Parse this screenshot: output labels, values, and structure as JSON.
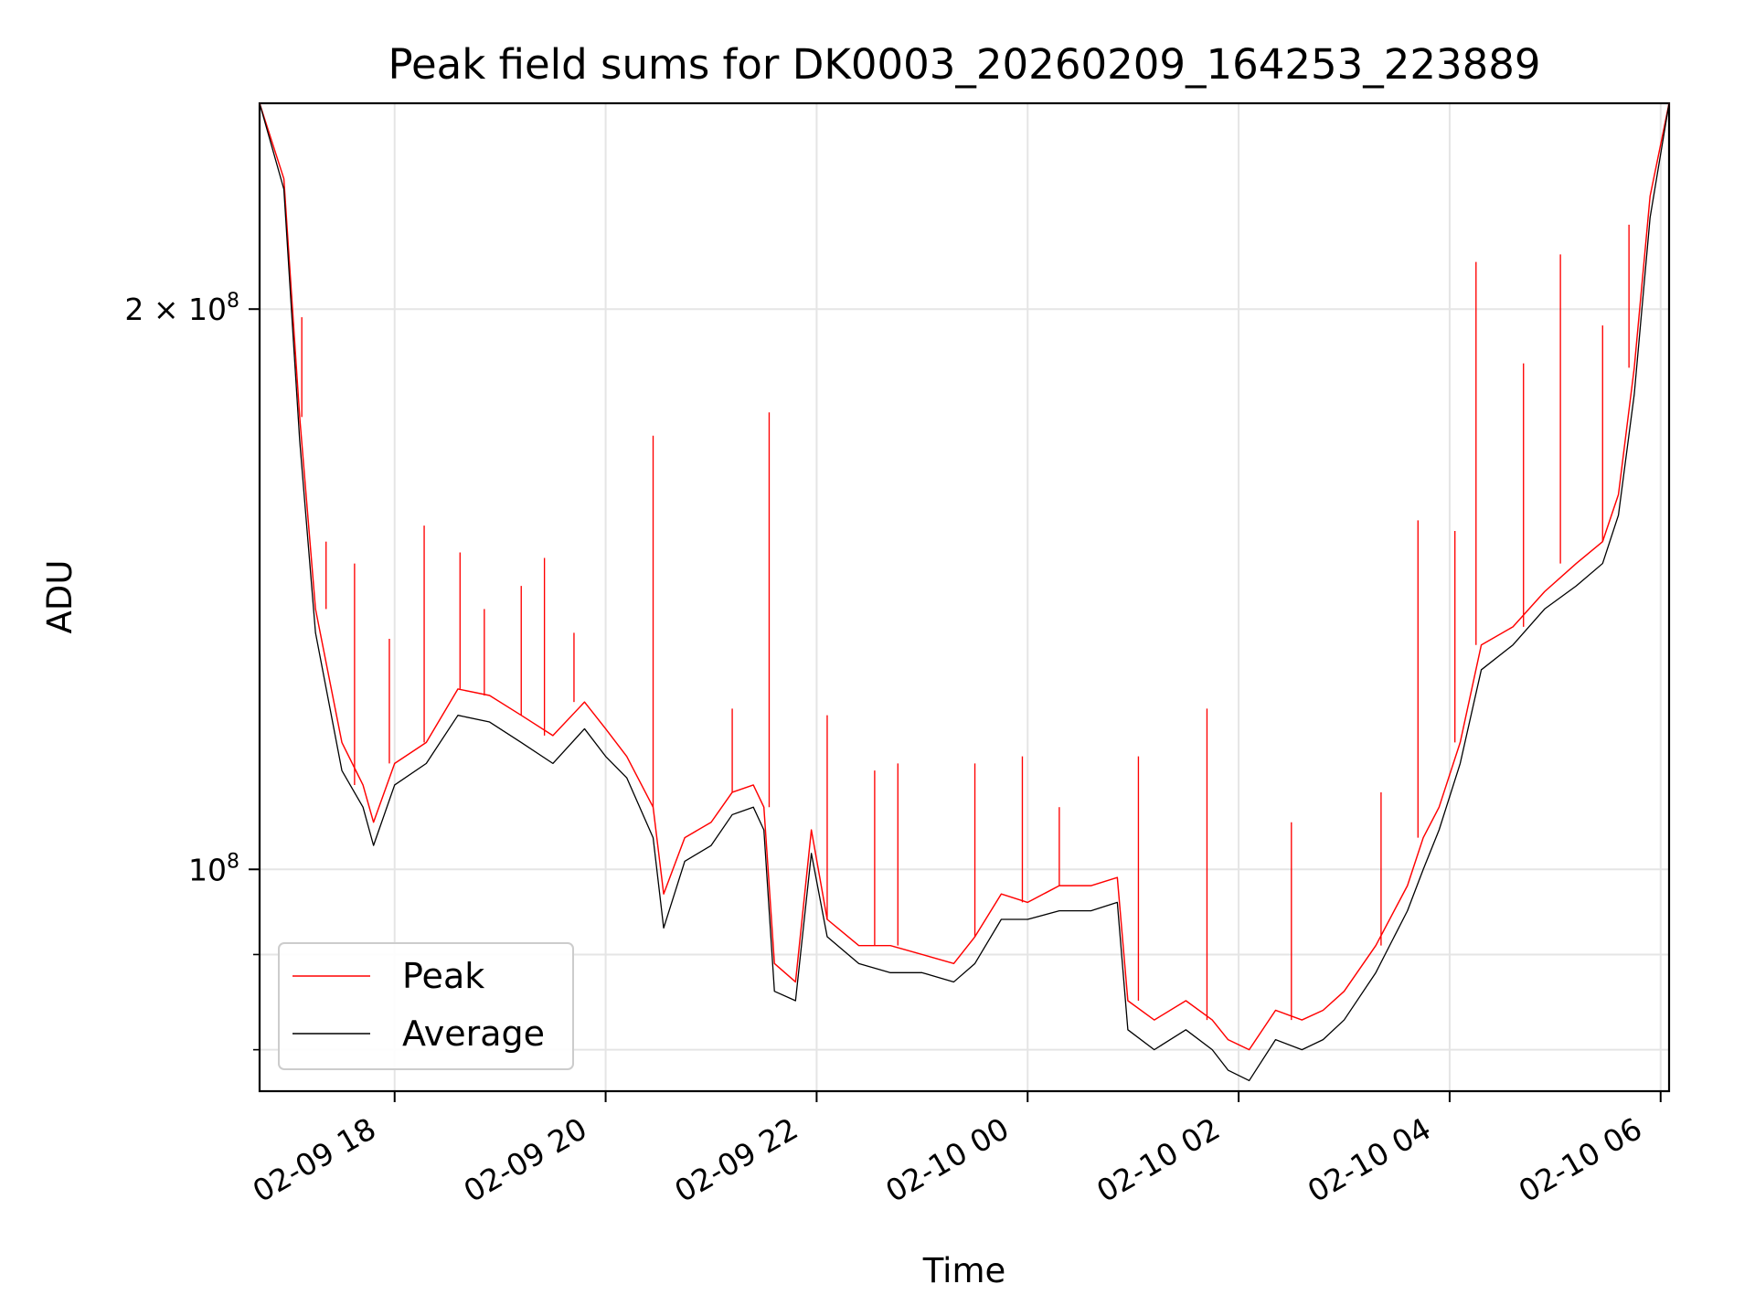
{
  "chart_data": {
    "type": "line",
    "title": "Peak field sums for DK0003_20260209_164253_223889",
    "xlabel": "Time",
    "ylabel": "ADU",
    "yscale": "log",
    "xlim_hours": [
      16.72,
      30.08
    ],
    "ylim": [
      76000000,
      258000000
    ],
    "grid": true,
    "legend_position": "lower-left",
    "x_ticks": [
      {
        "hours": 18,
        "label": "02-09 18"
      },
      {
        "hours": 20,
        "label": "02-09 20"
      },
      {
        "hours": 22,
        "label": "02-09 22"
      },
      {
        "hours": 24,
        "label": "02-10 00"
      },
      {
        "hours": 26,
        "label": "02-10 02"
      },
      {
        "hours": 28,
        "label": "02-10 04"
      },
      {
        "hours": 30,
        "label": "02-10 06"
      }
    ],
    "y_major_ticks": [
      {
        "value": 100000000,
        "base": "10",
        "exponent": "8"
      },
      {
        "value": 200000000,
        "coeff": "2 × 10",
        "exponent": "8"
      }
    ],
    "y_minor_ticks": [
      80000000,
      90000000
    ],
    "series": [
      {
        "name": "Peak",
        "color": "#ff0000",
        "x_hours": [
          16.72,
          16.95,
          17.1,
          17.25,
          17.5,
          17.7,
          17.8,
          18.0,
          18.3,
          18.6,
          18.9,
          19.2,
          19.5,
          19.8,
          20.0,
          20.2,
          20.45,
          20.55,
          20.75,
          21.0,
          21.2,
          21.4,
          21.5,
          21.6,
          21.8,
          21.95,
          22.1,
          22.4,
          22.7,
          23.0,
          23.3,
          23.5,
          23.75,
          24.0,
          24.3,
          24.6,
          24.85,
          24.95,
          25.2,
          25.5,
          25.75,
          25.9,
          26.1,
          26.35,
          26.6,
          26.8,
          27.0,
          27.3,
          27.6,
          27.75,
          27.9,
          28.1,
          28.3,
          28.6,
          28.9,
          29.2,
          29.45,
          29.6,
          29.75,
          29.9,
          30.08
        ],
        "values": [
          258000000,
          235000000,
          175000000,
          138000000,
          117000000,
          111000000,
          106000000,
          114000000,
          117000000,
          125000000,
          124000000,
          121000000,
          118000000,
          123000000,
          119000000,
          115000000,
          108000000,
          97000000,
          104000000,
          106000000,
          110000000,
          111000000,
          108000000,
          89000000,
          87000000,
          105000000,
          94000000,
          91000000,
          91000000,
          90000000,
          89000000,
          92000000,
          97000000,
          96000000,
          98000000,
          98000000,
          99000000,
          85000000,
          83000000,
          85000000,
          83000000,
          81000000,
          80000000,
          84000000,
          83000000,
          84000000,
          86000000,
          91000000,
          98000000,
          104000000,
          108000000,
          117000000,
          132000000,
          135000000,
          141000000,
          146000000,
          150000000,
          159000000,
          186000000,
          230000000,
          258000000
        ]
      },
      {
        "name": "Average",
        "color": "#000000",
        "x_hours": [
          16.72,
          16.95,
          17.1,
          17.25,
          17.5,
          17.7,
          17.8,
          18.0,
          18.3,
          18.6,
          18.9,
          19.2,
          19.5,
          19.8,
          20.0,
          20.2,
          20.45,
          20.55,
          20.75,
          21.0,
          21.2,
          21.4,
          21.5,
          21.6,
          21.8,
          21.95,
          22.1,
          22.4,
          22.7,
          23.0,
          23.3,
          23.5,
          23.75,
          24.0,
          24.3,
          24.6,
          24.85,
          24.95,
          25.2,
          25.5,
          25.75,
          25.9,
          26.1,
          26.35,
          26.6,
          26.8,
          27.0,
          27.3,
          27.6,
          27.75,
          27.9,
          28.1,
          28.3,
          28.6,
          28.9,
          29.2,
          29.45,
          29.6,
          29.75,
          29.9,
          30.08
        ],
        "values": [
          258000000,
          232000000,
          170000000,
          134000000,
          113000000,
          108000000,
          103000000,
          111000000,
          114000000,
          121000000,
          120000000,
          117000000,
          114000000,
          119000000,
          115000000,
          112000000,
          104000000,
          93000000,
          101000000,
          103000000,
          107000000,
          108000000,
          105000000,
          86000000,
          85000000,
          102000000,
          92000000,
          89000000,
          88000000,
          88000000,
          87000000,
          89000000,
          94000000,
          94000000,
          95000000,
          95000000,
          96000000,
          82000000,
          80000000,
          82000000,
          80000000,
          78000000,
          77000000,
          81000000,
          80000000,
          81000000,
          83000000,
          88000000,
          95000000,
          100000000,
          105000000,
          114000000,
          128000000,
          132000000,
          138000000,
          142000000,
          146000000,
          155000000,
          180000000,
          224000000,
          258000000
        ]
      }
    ],
    "peak_spikes": [
      {
        "x_hours": 17.12,
        "value": 198000000
      },
      {
        "x_hours": 17.35,
        "value": 150000000
      },
      {
        "x_hours": 17.62,
        "value": 146000000
      },
      {
        "x_hours": 17.95,
        "value": 133000000
      },
      {
        "x_hours": 18.28,
        "value": 153000000
      },
      {
        "x_hours": 18.62,
        "value": 148000000
      },
      {
        "x_hours": 18.85,
        "value": 138000000
      },
      {
        "x_hours": 19.2,
        "value": 142000000
      },
      {
        "x_hours": 19.42,
        "value": 147000000
      },
      {
        "x_hours": 19.7,
        "value": 134000000
      },
      {
        "x_hours": 20.45,
        "value": 171000000
      },
      {
        "x_hours": 21.2,
        "value": 122000000
      },
      {
        "x_hours": 21.55,
        "value": 176000000
      },
      {
        "x_hours": 22.1,
        "value": 121000000
      },
      {
        "x_hours": 22.55,
        "value": 113000000
      },
      {
        "x_hours": 22.77,
        "value": 114000000
      },
      {
        "x_hours": 23.5,
        "value": 114000000
      },
      {
        "x_hours": 23.95,
        "value": 115000000
      },
      {
        "x_hours": 24.3,
        "value": 108000000
      },
      {
        "x_hours": 25.05,
        "value": 115000000
      },
      {
        "x_hours": 25.7,
        "value": 122000000
      },
      {
        "x_hours": 26.5,
        "value": 106000000
      },
      {
        "x_hours": 27.35,
        "value": 110000000
      },
      {
        "x_hours": 27.7,
        "value": 154000000
      },
      {
        "x_hours": 28.05,
        "value": 152000000
      },
      {
        "x_hours": 28.25,
        "value": 212000000
      },
      {
        "x_hours": 28.7,
        "value": 187000000
      },
      {
        "x_hours": 29.05,
        "value": 214000000
      },
      {
        "x_hours": 29.45,
        "value": 196000000
      },
      {
        "x_hours": 29.7,
        "value": 222000000
      }
    ]
  }
}
